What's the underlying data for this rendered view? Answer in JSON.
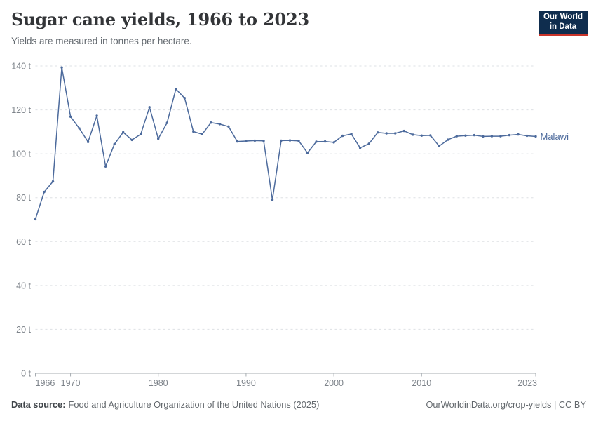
{
  "header": {
    "title": "Sugar cane yields, 1966 to 2023",
    "subtitle": "Yields are measured in tonnes per hectare.",
    "logo": {
      "line1": "Our World",
      "line2": "in Data"
    }
  },
  "footer": {
    "source_label": "Data source:",
    "source_rest": "Food and Agriculture Organization of the United Nations (2025)",
    "attribution": "OurWorldinData.org/crop-yields | CC BY"
  },
  "colors": {
    "series_blue": "#4C6A9C",
    "logo_navy": "#0f2d4e",
    "logo_red": "#c9342a",
    "grid_gray": "#dde0e4",
    "axis_gray": "#a7adb2",
    "label_gray": "#7d838a"
  },
  "chart_data": {
    "type": "line",
    "title": "Sugar cane yields, 1966 to 2023",
    "subtitle": "Yields are measured in tonnes per hectare.",
    "unit": "tonnes per hectare",
    "unit_suffix": " t",
    "xlim": [
      1966,
      2023
    ],
    "ylim": [
      0,
      140
    ],
    "yticks": [
      0,
      20,
      40,
      60,
      80,
      100,
      120,
      140
    ],
    "xticks": [
      1966,
      1970,
      1980,
      1990,
      2000,
      2010,
      2023
    ],
    "grid": "horizontal-dashed",
    "legend_position": "end-of-line",
    "x": [
      1966,
      1967,
      1968,
      1969,
      1970,
      1971,
      1972,
      1973,
      1974,
      1975,
      1976,
      1977,
      1978,
      1979,
      1980,
      1981,
      1982,
      1983,
      1984,
      1985,
      1986,
      1987,
      1988,
      1989,
      1990,
      1991,
      1992,
      1993,
      1994,
      1995,
      1996,
      1997,
      1998,
      1999,
      2000,
      2001,
      2002,
      2003,
      2004,
      2005,
      2006,
      2007,
      2008,
      2009,
      2010,
      2011,
      2012,
      2013,
      2014,
      2015,
      2016,
      2017,
      2018,
      2019,
      2020,
      2021,
      2022,
      2023
    ],
    "series": [
      {
        "name": "Malawi",
        "color": "#4C6A9C",
        "values": [
          70.2,
          82.6,
          87.4,
          139.3,
          116.9,
          111.6,
          105.4,
          117.3,
          94.2,
          104.4,
          109.8,
          106.3,
          108.9,
          121.2,
          106.9,
          114.1,
          129.5,
          125.4,
          110.1,
          108.9,
          114.2,
          113.5,
          112.4,
          105.6,
          105.8,
          106.0,
          105.9,
          79.0,
          106.0,
          106.1,
          105.9,
          100.4,
          105.5,
          105.6,
          105.2,
          108.2,
          109.0,
          102.7,
          104.6,
          109.7,
          109.3,
          109.3,
          110.4,
          108.7,
          108.3,
          108.4,
          103.5,
          106.4,
          108.0,
          108.3,
          108.5,
          107.9,
          108.0,
          108.0,
          108.5,
          108.8,
          108.2,
          107.9
        ]
      }
    ]
  }
}
